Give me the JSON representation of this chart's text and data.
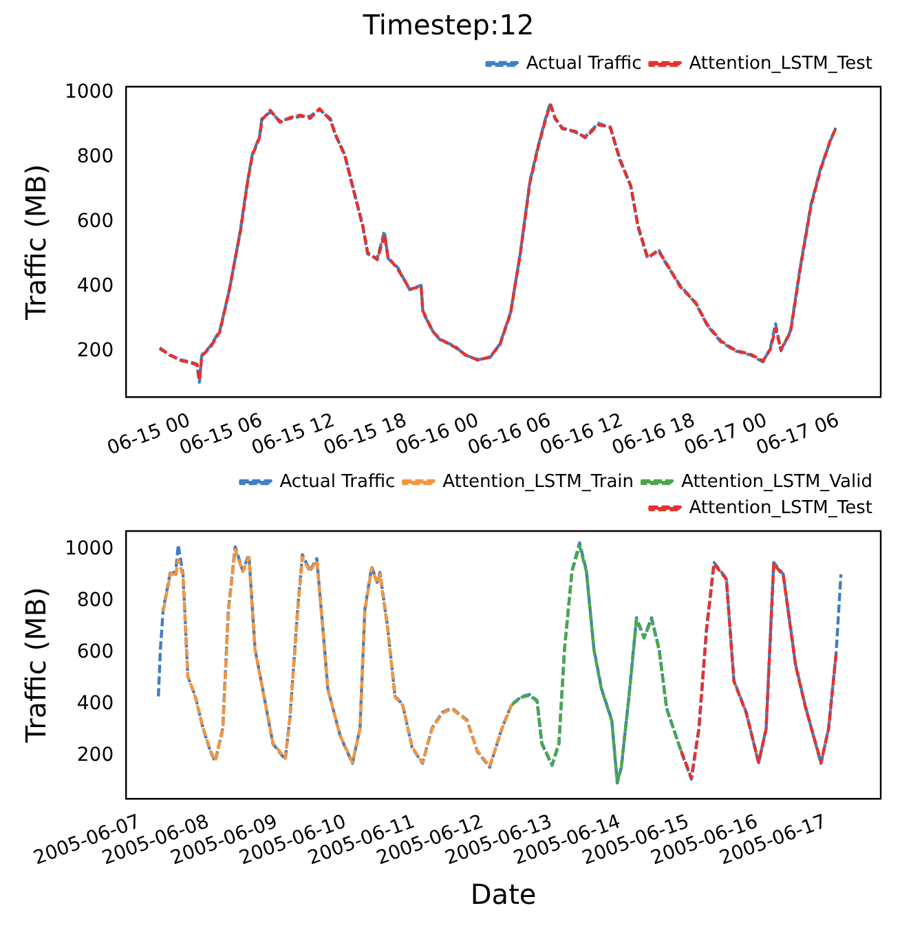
{
  "chart_data": [
    {
      "type": "line",
      "title": "Timestep:12",
      "ylabel": "Traffic (MB)",
      "x": [
        "2005-06-14T21:30",
        "2005-06-14T22:18",
        "2005-06-14T23:12",
        "2005-06-15T00:00",
        "2005-06-15T00:36",
        "2005-06-15T00:48",
        "2005-06-15T01:00",
        "2005-06-15T01:42",
        "2005-06-15T02:30",
        "2005-06-15T03:18",
        "2005-06-15T04:12",
        "2005-06-15T04:48",
        "2005-06-15T05:12",
        "2005-06-15T05:48",
        "2005-06-15T06:00",
        "2005-06-15T06:42",
        "2005-06-15T07:30",
        "2005-06-15T08:18",
        "2005-06-15T09:12",
        "2005-06-15T10:00",
        "2005-06-15T10:48",
        "2005-06-15T11:42",
        "2005-06-15T12:06",
        "2005-06-15T12:54",
        "2005-06-15T13:45",
        "2005-06-15T14:24",
        "2005-06-15T14:48",
        "2005-06-15T15:36",
        "2005-06-15T16:12",
        "2005-06-15T16:30",
        "2005-06-15T17:18",
        "2005-06-15T18:18",
        "2005-06-15T19:15",
        "2005-06-15T19:24",
        "2005-06-15T20:12",
        "2005-06-15T20:48",
        "2005-06-15T22:06",
        "2005-06-15T22:54",
        "2005-06-16T00:00",
        "2005-06-16T01:00",
        "2005-06-16T01:48",
        "2005-06-16T02:42",
        "2005-06-16T03:30",
        "2005-06-16T04:18",
        "2005-06-16T05:00",
        "2005-06-16T05:36",
        "2005-06-16T06:00",
        "2005-06-16T06:24",
        "2005-06-16T07:00",
        "2005-06-16T08:06",
        "2005-06-16T08:54",
        "2005-06-16T10:00",
        "2005-06-16T11:00",
        "2005-06-16T11:48",
        "2005-06-16T12:42",
        "2005-06-16T13:18",
        "2005-06-16T14:06",
        "2005-06-16T15:00",
        "2005-06-16T15:36",
        "2005-06-16T16:48",
        "2005-06-16T18:06",
        "2005-06-16T19:06",
        "2005-06-16T20:12",
        "2005-06-16T21:24",
        "2005-06-16T22:42",
        "2005-06-16T23:42",
        "2005-06-17T00:18",
        "2005-06-17T00:45",
        "2005-06-17T01:12",
        "2005-06-17T02:00",
        "2005-06-17T02:48",
        "2005-06-17T03:42",
        "2005-06-17T04:30",
        "2005-06-17T05:18",
        "2005-06-17T05:45"
      ],
      "series": [
        {
          "name": "Actual Traffic",
          "color": "#3f7fc4",
          "values": [
            211,
            188,
            174,
            167,
            160,
            104,
            188,
            215,
            264,
            390,
            571,
            724,
            808,
            863,
            919,
            940,
            912,
            919,
            926,
            926,
            947,
            919,
            870,
            808,
            682,
            585,
            501,
            487,
            571,
            487,
            459,
            390,
            404,
            320,
            264,
            236,
            215,
            188,
            174,
            181,
            222,
            320,
            501,
            724,
            836,
            919,
            968,
            919,
            891,
            877,
            863,
            905,
            891,
            794,
            710,
            585,
            487,
            515,
            473,
            404,
            348,
            278,
            229,
            201,
            188,
            167,
            208,
            285,
            201,
            264,
            459,
            654,
            766,
            849,
            891
          ]
        },
        {
          "name": "Attention_LSTM_Test",
          "color": "#e5322d",
          "values": [
            208,
            190,
            172,
            165,
            158,
            110,
            185,
            212,
            260,
            392,
            568,
            720,
            805,
            860,
            915,
            945,
            908,
            922,
            930,
            920,
            950,
            915,
            872,
            805,
            680,
            588,
            505,
            483,
            560,
            490,
            455,
            392,
            400,
            325,
            262,
            238,
            212,
            190,
            172,
            183,
            220,
            318,
            500,
            720,
            832,
            915,
            962,
            922,
            888,
            880,
            860,
            900,
            893,
            790,
            712,
            588,
            490,
            510,
            476,
            400,
            350,
            280,
            232,
            203,
            190,
            170,
            205,
            270,
            205,
            260,
            455,
            650,
            762,
            852,
            888
          ]
        }
      ],
      "xlim": [
        "2005-06-14T18:42",
        "2005-06-17T09:30"
      ],
      "xticks": [
        {
          "value": "2005-06-15T00:00",
          "label": "06-15 00"
        },
        {
          "value": "2005-06-15T06:00",
          "label": "06-15 06"
        },
        {
          "value": "2005-06-15T12:00",
          "label": "06-15 12"
        },
        {
          "value": "2005-06-15T18:00",
          "label": "06-15 18"
        },
        {
          "value": "2005-06-16T00:00",
          "label": "06-16 00"
        },
        {
          "value": "2005-06-16T06:00",
          "label": "06-16 06"
        },
        {
          "value": "2005-06-16T12:00",
          "label": "06-16 12"
        },
        {
          "value": "2005-06-16T18:00",
          "label": "06-16 18"
        },
        {
          "value": "2005-06-17T00:00",
          "label": "06-17 00"
        },
        {
          "value": "2005-06-17T06:00",
          "label": "06-17 06"
        }
      ],
      "ylim": [
        58,
        1018
      ],
      "yticks": [
        200,
        400,
        600,
        800,
        1000
      ],
      "grid": false,
      "legend": "top right",
      "marker": "none",
      "line_style": "dashed"
    },
    {
      "type": "line",
      "xlabel": "Date",
      "ylabel": "Traffic (MB)",
      "series": [
        {
          "name": "Actual Traffic",
          "color": "#3f7fc4",
          "x": [
            "2005-06-07T06:30",
            "2005-06-07T07:12",
            "2005-06-07T08:10",
            "2005-06-07T10:48",
            "2005-06-07T12:30",
            "2005-06-07T13:26",
            "2005-06-07T15:07",
            "2005-06-07T16:48",
            "2005-06-07T19:26",
            "2005-06-07T22:05",
            "2005-06-08T00:43",
            "2005-06-08T02:24",
            "2005-06-08T05:02",
            "2005-06-08T06:58",
            "2005-06-08T09:22",
            "2005-06-08T12:00",
            "2005-06-08T14:10",
            "2005-06-08T16:19",
            "2005-06-08T18:58",
            "2005-06-08T22:34",
            "2005-06-09T02:53",
            "2005-06-09T04:34",
            "2005-06-09T07:12",
            "2005-06-09T08:53",
            "2005-06-09T11:31",
            "2005-06-09T13:55",
            "2005-06-09T16:05",
            "2005-06-09T17:46",
            "2005-06-09T22:05",
            "2005-06-10T02:24",
            "2005-06-10T05:02",
            "2005-06-10T06:43",
            "2005-06-10T09:07",
            "2005-06-10T11:02",
            "2005-06-10T12:00",
            "2005-06-10T14:38",
            "2005-06-10T17:17",
            "2005-06-10T19:55",
            "2005-06-10T23:17",
            "2005-06-11T02:53",
            "2005-06-11T06:14",
            "2005-06-11T09:50",
            "2005-06-11T13:12",
            "2005-06-11T18:29",
            "2005-06-11T22:05",
            "2005-06-12T02:24",
            "2005-06-12T06:43",
            "2005-06-12T10:05",
            "2005-06-12T13:41",
            "2005-06-12T16:19",
            "2005-06-12T18:58",
            "2005-06-12T20:38",
            "2005-06-13T00:14",
            "2005-06-13T02:38",
            "2005-06-13T04:34",
            "2005-06-13T07:12",
            "2005-06-13T09:50",
            "2005-06-13T12:14",
            "2005-06-13T14:53",
            "2005-06-13T17:31",
            "2005-06-13T21:07",
            "2005-06-13T23:02",
            "2005-06-14T00:29",
            "2005-06-14T03:07",
            "2005-06-14T05:46",
            "2005-06-14T08:24",
            "2005-06-14T11:02",
            "2005-06-14T13:41",
            "2005-06-14T16:19",
            "2005-06-14T21:22",
            "2005-06-15T00:58",
            "2005-06-15T03:36",
            "2005-06-15T06:14",
            "2005-06-15T08:53",
            "2005-06-15T13:12",
            "2005-06-15T15:50",
            "2005-06-15T20:10",
            "2005-06-16T00:29",
            "2005-06-16T03:07",
            "2005-06-16T05:46",
            "2005-06-16T09:07",
            "2005-06-16T13:26",
            "2005-06-16T17:02",
            "2005-06-16T22:19",
            "2005-06-17T00:58",
            "2005-06-17T03:36",
            "2005-06-17T05:17"
          ],
          "values": [
            431,
            614,
            766,
            919,
            904,
            1018,
            904,
            507,
            431,
            308,
            217,
            179,
            308,
            766,
            1011,
            919,
            980,
            614,
            461,
            247,
            186,
            354,
            766,
            980,
            919,
            965,
            690,
            461,
            278,
            171,
            308,
            766,
            934,
            873,
            911,
            705,
            431,
            400,
            232,
            171,
            308,
            369,
            385,
            339,
            217,
            156,
            308,
            400,
            431,
            438,
            415,
            247,
            163,
            247,
            614,
            919,
            1026,
            919,
            614,
            461,
            339,
            95,
            156,
            431,
            736,
            660,
            736,
            614,
            385,
            217,
            110,
            308,
            690,
            950,
            888,
            492,
            369,
            171,
            308,
            950,
            904,
            553,
            385,
            171,
            308,
            599,
            904
          ]
        },
        {
          "name": "Attention_LSTM_Train",
          "color": "#f5953d",
          "x": [
            "2005-06-07T08:10",
            "2005-06-07T10:48",
            "2005-06-07T12:30",
            "2005-06-07T13:26",
            "2005-06-07T15:07",
            "2005-06-07T16:48",
            "2005-06-07T19:26",
            "2005-06-07T22:05",
            "2005-06-08T00:43",
            "2005-06-08T02:24",
            "2005-06-08T05:02",
            "2005-06-08T06:58",
            "2005-06-08T09:22",
            "2005-06-08T12:00",
            "2005-06-08T14:10",
            "2005-06-08T16:19",
            "2005-06-08T18:58",
            "2005-06-08T22:34",
            "2005-06-09T02:53",
            "2005-06-09T04:34",
            "2005-06-09T07:12",
            "2005-06-09T08:53",
            "2005-06-09T11:31",
            "2005-06-09T13:55",
            "2005-06-09T16:05",
            "2005-06-09T17:46",
            "2005-06-09T22:05",
            "2005-06-10T02:24",
            "2005-06-10T05:02",
            "2005-06-10T06:43",
            "2005-06-10T09:07",
            "2005-06-10T11:02",
            "2005-06-10T12:00",
            "2005-06-10T14:38",
            "2005-06-10T17:17",
            "2005-06-10T19:55",
            "2005-06-10T23:17",
            "2005-06-11T02:53",
            "2005-06-11T06:14",
            "2005-06-11T09:50",
            "2005-06-11T13:12",
            "2005-06-11T18:29",
            "2005-06-11T22:05",
            "2005-06-12T02:24",
            "2005-06-12T06:43",
            "2005-06-12T10:05"
          ],
          "values": [
            760,
            910,
            895,
            960,
            900,
            510,
            428,
            310,
            220,
            182,
            305,
            760,
            1000,
            915,
            970,
            610,
            458,
            250,
            190,
            350,
            760,
            970,
            915,
            958,
            688,
            458,
            280,
            174,
            305,
            760,
            930,
            870,
            905,
            700,
            428,
            398,
            235,
            174,
            305,
            366,
            382,
            336,
            220,
            160,
            305,
            398
          ]
        },
        {
          "name": "Attention_LSTM_Valid",
          "color": "#4aa84a",
          "x": [
            "2005-06-12T10:05",
            "2005-06-12T13:41",
            "2005-06-12T16:19",
            "2005-06-12T18:58",
            "2005-06-12T20:38",
            "2005-06-13T00:14",
            "2005-06-13T02:38",
            "2005-06-13T04:34",
            "2005-06-13T07:12",
            "2005-06-13T09:50",
            "2005-06-13T12:14",
            "2005-06-13T14:53",
            "2005-06-13T17:31",
            "2005-06-13T21:07",
            "2005-06-13T23:02",
            "2005-06-14T00:29",
            "2005-06-14T03:07",
            "2005-06-14T05:46",
            "2005-06-14T08:24",
            "2005-06-14T11:02",
            "2005-06-14T13:41",
            "2005-06-14T16:19",
            "2005-06-14T21:22"
          ],
          "values": [
            398,
            428,
            435,
            412,
            250,
            166,
            250,
            610,
            915,
            1015,
            915,
            610,
            458,
            336,
            100,
            160,
            428,
            730,
            657,
            730,
            610,
            382,
            220
          ]
        },
        {
          "name": "Attention_LSTM_Test",
          "color": "#e5322d",
          "x": [
            "2005-06-14T21:22",
            "2005-06-15T00:58",
            "2005-06-15T03:36",
            "2005-06-15T06:14",
            "2005-06-15T08:53",
            "2005-06-15T13:12",
            "2005-06-15T15:50",
            "2005-06-15T20:10",
            "2005-06-16T00:29",
            "2005-06-16T03:07",
            "2005-06-16T05:46",
            "2005-06-16T09:07",
            "2005-06-16T13:26",
            "2005-06-16T17:02",
            "2005-06-16T22:19",
            "2005-06-17T00:58",
            "2005-06-17T03:36"
          ],
          "values": [
            220,
            115,
            305,
            685,
            945,
            885,
            490,
            366,
            174,
            305,
            945,
            900,
            550,
            382,
            174,
            305,
            595
          ]
        }
      ],
      "xlim": [
        "2005-06-06T19:12",
        "2005-06-17T19:12"
      ],
      "xticks": [
        {
          "value": "2005-06-07",
          "label": "2005-06-07"
        },
        {
          "value": "2005-06-08",
          "label": "2005-06-08"
        },
        {
          "value": "2005-06-09",
          "label": "2005-06-09"
        },
        {
          "value": "2005-06-10",
          "label": "2005-06-10"
        },
        {
          "value": "2005-06-11",
          "label": "2005-06-11"
        },
        {
          "value": "2005-06-12",
          "label": "2005-06-12"
        },
        {
          "value": "2005-06-13",
          "label": "2005-06-13"
        },
        {
          "value": "2005-06-14",
          "label": "2005-06-14"
        },
        {
          "value": "2005-06-15",
          "label": "2005-06-15"
        },
        {
          "value": "2005-06-16",
          "label": "2005-06-16"
        },
        {
          "value": "2005-06-17",
          "label": "2005-06-17"
        }
      ],
      "ylim": [
        35,
        1072
      ],
      "yticks": [
        200,
        400,
        600,
        800,
        1000
      ],
      "grid": false,
      "legend": "top right",
      "marker": "none",
      "line_style": "dashed"
    }
  ]
}
